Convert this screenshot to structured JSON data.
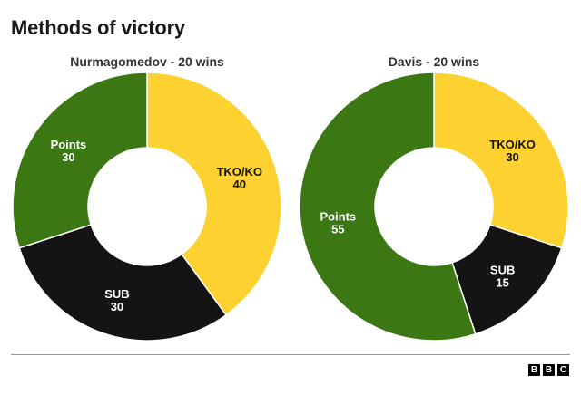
{
  "header": {
    "title": "Methods of victory"
  },
  "colors": {
    "tko_ko": "#FDD130",
    "sub": "#141414",
    "points": "#3B7814"
  },
  "chart_data": [
    {
      "type": "pie",
      "title": "Nurmagomedov - 20 wins",
      "slices": [
        {
          "label": "TKO/KO",
          "value": 40,
          "color": "#FDD130",
          "label_color": "#141414"
        },
        {
          "label": "SUB",
          "value": 30,
          "color": "#141414",
          "label_color": "#ffffff"
        },
        {
          "label": "Points",
          "value": 30,
          "color": "#3B7814",
          "label_color": "#ffffff"
        }
      ]
    },
    {
      "type": "pie",
      "title": "Davis - 20 wins",
      "slices": [
        {
          "label": "TKO/KO",
          "value": 30,
          "color": "#FDD130",
          "label_color": "#141414"
        },
        {
          "label": "SUB",
          "value": 15,
          "color": "#141414",
          "label_color": "#ffffff"
        },
        {
          "label": "Points",
          "value": 55,
          "color": "#3B7814",
          "label_color": "#ffffff"
        }
      ]
    }
  ],
  "footer": {
    "logo": [
      "B",
      "B",
      "C"
    ]
  }
}
